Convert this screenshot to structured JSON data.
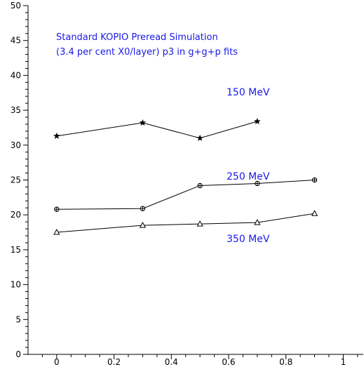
{
  "chart_data": {
    "type": "line",
    "title": "",
    "xlabel": "",
    "ylabel": "",
    "xlim": [
      -0.1,
      1.07
    ],
    "ylim": [
      0,
      50
    ],
    "grid": false,
    "x_ticks": [
      0,
      0.2,
      0.4,
      0.6,
      0.8,
      1
    ],
    "x_tick_labels": [
      "0",
      "0.2",
      "0.4",
      "0.6",
      "0.8",
      "1"
    ],
    "y_ticks": [
      0,
      5,
      10,
      15,
      20,
      25,
      30,
      35,
      40,
      45,
      50
    ],
    "y_tick_labels": [
      "0",
      "5",
      "10",
      "15",
      "20",
      "25",
      "30",
      "35",
      "40",
      "45",
      "50"
    ],
    "annotations": [
      "Standard KOPIO Preread Simulation",
      "(3.4 per cent X0/layer) p3 in g+g+p fits"
    ],
    "series": [
      {
        "name": "150 MeV",
        "marker": "star",
        "x": [
          0,
          0.3,
          0.5,
          0.7
        ],
        "values": [
          31.3,
          33.2,
          31.0,
          33.4
        ]
      },
      {
        "name": "250 MeV",
        "marker": "circle-plus",
        "x": [
          0,
          0.3,
          0.5,
          0.7,
          0.9
        ],
        "values": [
          20.8,
          20.9,
          24.2,
          24.5,
          25.0
        ]
      },
      {
        "name": "350 MeV",
        "marker": "triangle",
        "x": [
          0,
          0.3,
          0.5,
          0.7,
          0.9
        ],
        "values": [
          17.5,
          18.5,
          18.7,
          18.9,
          20.2
        ]
      }
    ]
  },
  "colors": {
    "axis": "#000000",
    "line": "#000000",
    "label_text": "#1a1ae6"
  }
}
